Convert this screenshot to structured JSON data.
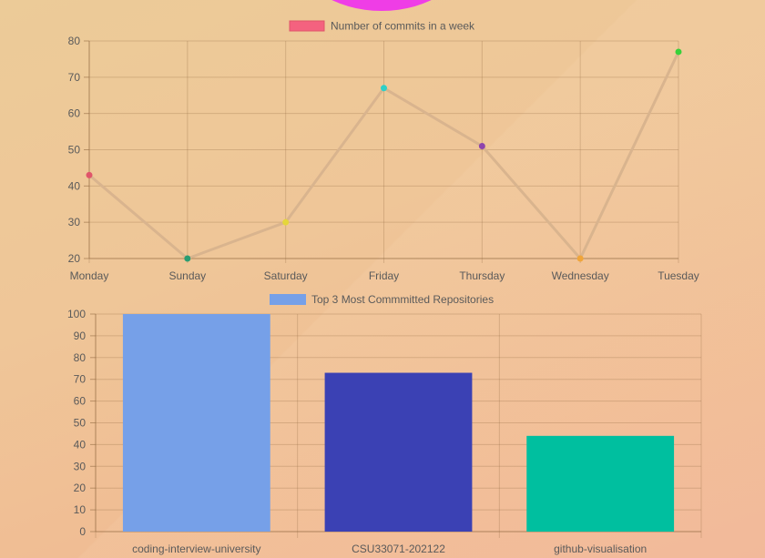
{
  "chart_data": [
    {
      "type": "line",
      "categories": [
        "Monday",
        "Sunday",
        "Saturday",
        "Friday",
        "Thursday",
        "Wednesday",
        "Tuesday"
      ],
      "values": [
        43,
        20,
        30,
        67,
        51,
        20,
        77
      ],
      "series": [
        {
          "name": "Number of commits in a week",
          "values": [
            43,
            20,
            30,
            67,
            51,
            20,
            77
          ]
        }
      ],
      "point_colors": [
        "#e0556a",
        "#2a9d72",
        "#e5d63a",
        "#2fd0c8",
        "#8e44ad",
        "#f0a53a",
        "#39d13a"
      ],
      "line_color": "#d9b48e",
      "legend_color": "#f4627f",
      "ylim": [
        20,
        80
      ],
      "yticks": [
        "20",
        "30",
        "40",
        "50",
        "60",
        "70",
        "80"
      ],
      "grid": true,
      "legend": "top"
    },
    {
      "type": "bar",
      "categories": [
        "coding-interview-university",
        "CSU33071-202122",
        "github-visualisation"
      ],
      "values": [
        100,
        73,
        44
      ],
      "series": [
        {
          "name": "Top 3 Most Commmitted Repositories",
          "values": [
            100,
            73,
            44
          ]
        }
      ],
      "bar_colors": [
        "#76a0e8",
        "#3b41b4",
        "#00bf9f"
      ],
      "legend_color": "#76a0e8",
      "ylim": [
        0,
        100
      ],
      "yticks": [
        "0",
        "10",
        "20",
        "30",
        "40",
        "50",
        "60",
        "70",
        "80",
        "90",
        "100"
      ],
      "grid": true,
      "legend": "top"
    }
  ]
}
